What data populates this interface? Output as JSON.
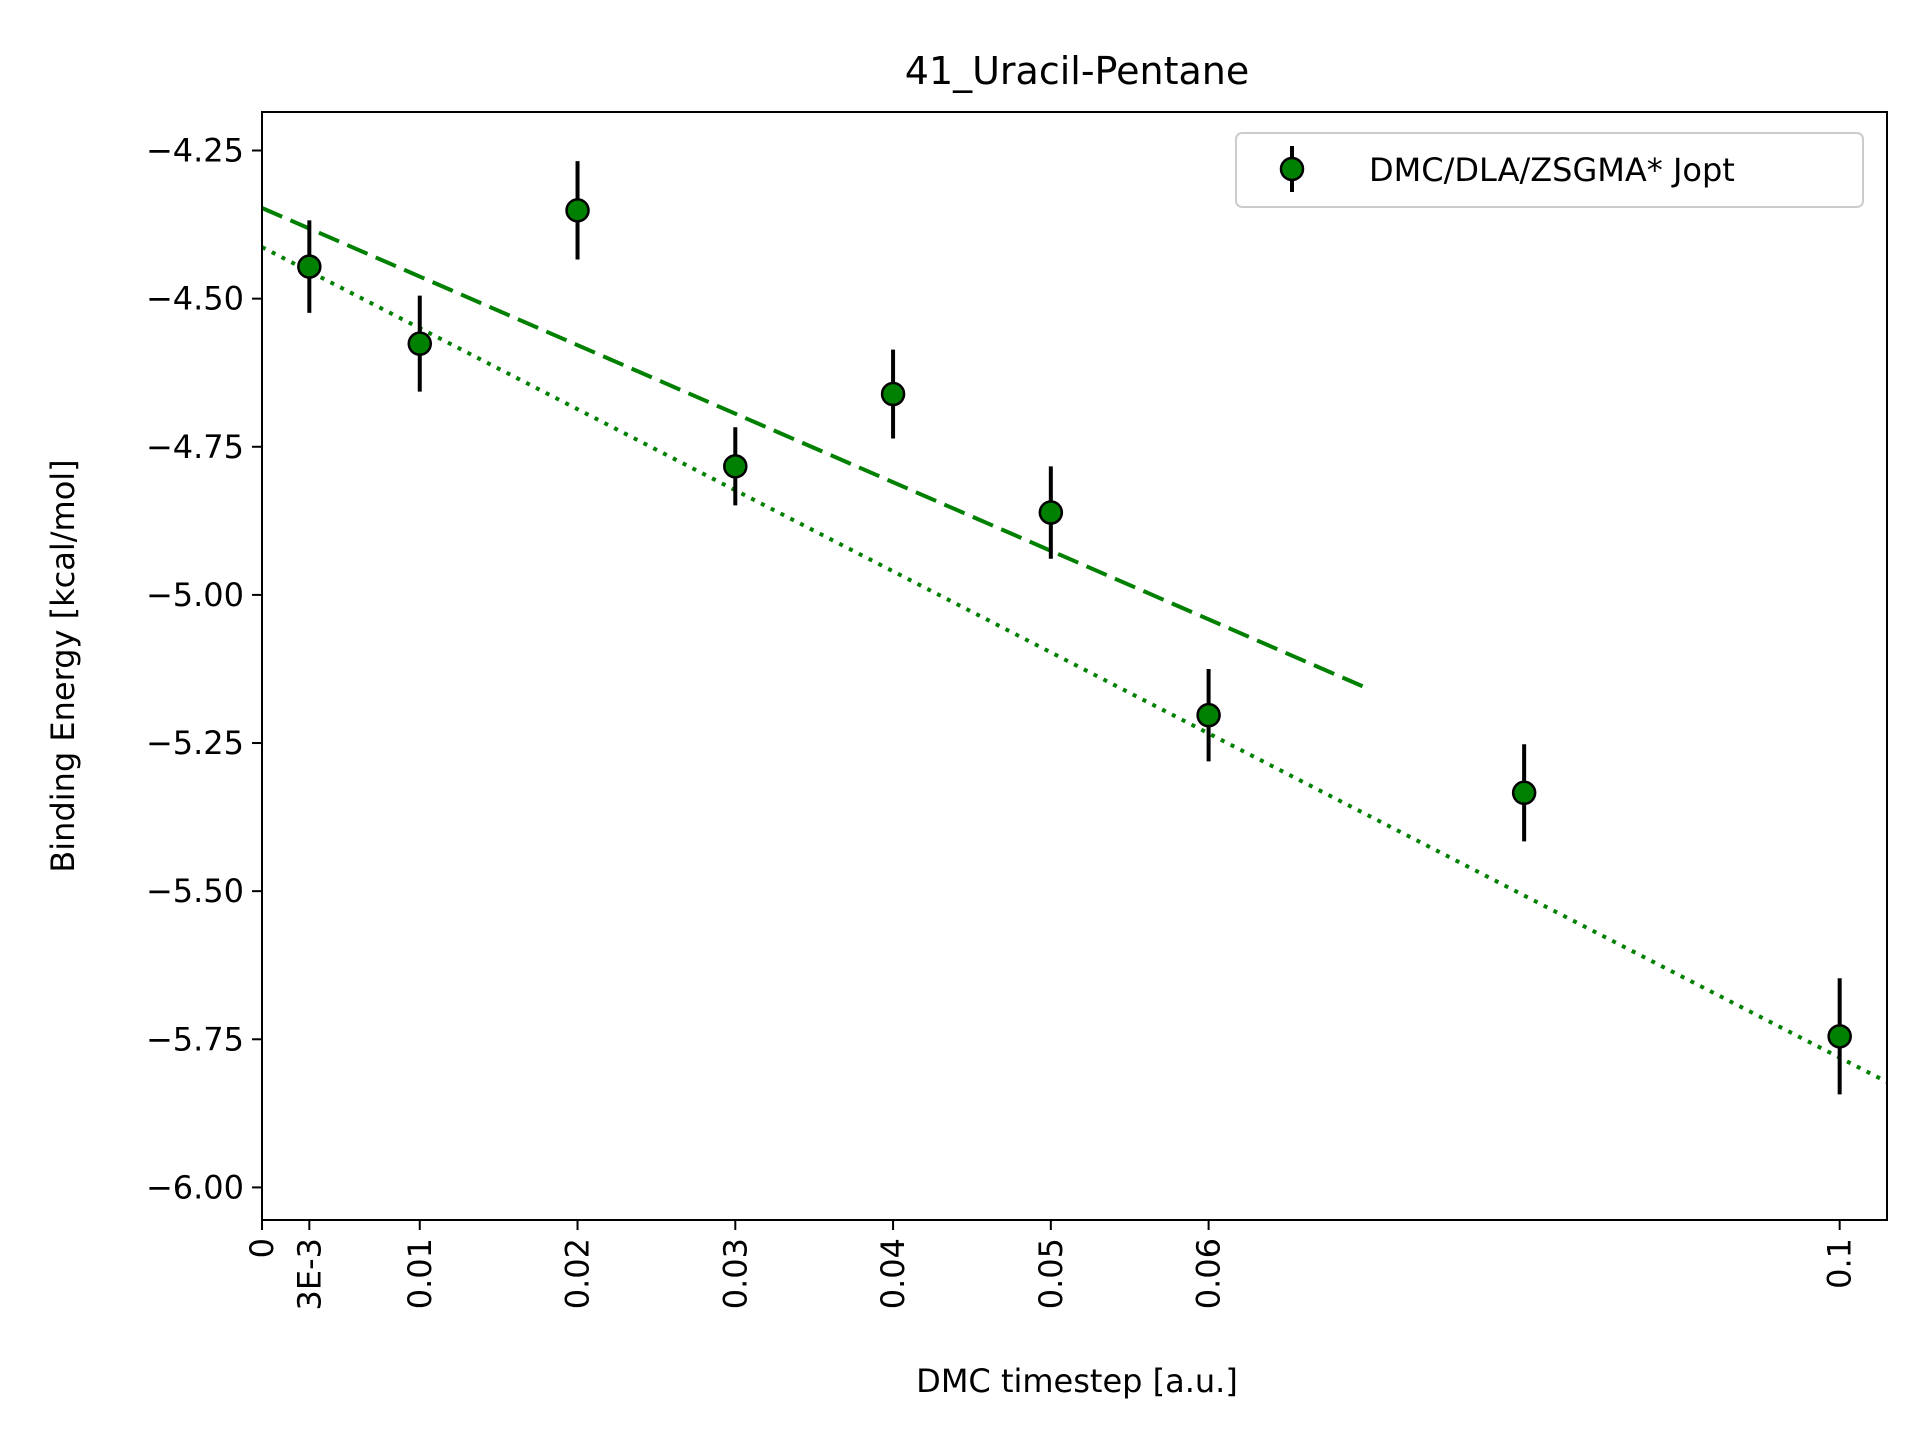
{
  "chart_data": {
    "type": "scatter",
    "title": "41_Uracil-Pentane",
    "xlabel": "DMC timestep [a.u.]",
    "ylabel": "Binding Energy [kcal/mol]",
    "xlim": [
      0,
      0.103
    ],
    "ylim": [
      -6.055,
      -4.185
    ],
    "grid": false,
    "legend_position": "top-right",
    "x_ticks": [
      {
        "value": 0,
        "label": "0"
      },
      {
        "value": 0.003,
        "label": "3E-3"
      },
      {
        "value": 0.01,
        "label": "0.01"
      },
      {
        "value": 0.02,
        "label": "0.02"
      },
      {
        "value": 0.03,
        "label": "0.03"
      },
      {
        "value": 0.04,
        "label": "0.04"
      },
      {
        "value": 0.05,
        "label": "0.05"
      },
      {
        "value": 0.06,
        "label": "0.06"
      },
      {
        "value": 0.1,
        "label": "0.1"
      }
    ],
    "y_ticks": [
      {
        "value": -4.25,
        "label": "−4.25"
      },
      {
        "value": -4.5,
        "label": "−4.50"
      },
      {
        "value": -4.75,
        "label": "−4.75"
      },
      {
        "value": -5.0,
        "label": "−5.00"
      },
      {
        "value": -5.25,
        "label": "−5.25"
      },
      {
        "value": -5.5,
        "label": "−5.50"
      },
      {
        "value": -5.75,
        "label": "−5.75"
      },
      {
        "value": -6.0,
        "label": "−6.00"
      }
    ],
    "series": [
      {
        "name": "DMC/DLA/ZSGMA* Jopt",
        "color": "#008000",
        "points": [
          {
            "x": 0.003,
            "y": -4.446,
            "err": 0.078
          },
          {
            "x": 0.01,
            "y": -4.576,
            "err": 0.081
          },
          {
            "x": 0.02,
            "y": -4.351,
            "err": 0.083
          },
          {
            "x": 0.03,
            "y": -4.783,
            "err": 0.066
          },
          {
            "x": 0.04,
            "y": -4.661,
            "err": 0.075
          },
          {
            "x": 0.05,
            "y": -4.861,
            "err": 0.078
          },
          {
            "x": 0.06,
            "y": -5.203,
            "err": 0.078
          },
          {
            "x": 0.08,
            "y": -5.334,
            "err": 0.082
          },
          {
            "x": 0.1,
            "y": -5.745,
            "err": 0.098
          }
        ]
      }
    ],
    "fits": [
      {
        "style": "dashed",
        "color": "#008000",
        "x": [
          0,
          0.07
        ],
        "y": [
          -4.347,
          -5.157
        ]
      },
      {
        "style": "dotted",
        "color": "#008000",
        "x": [
          0,
          0.103
        ],
        "y": [
          -4.413,
          -5.822
        ]
      }
    ]
  }
}
